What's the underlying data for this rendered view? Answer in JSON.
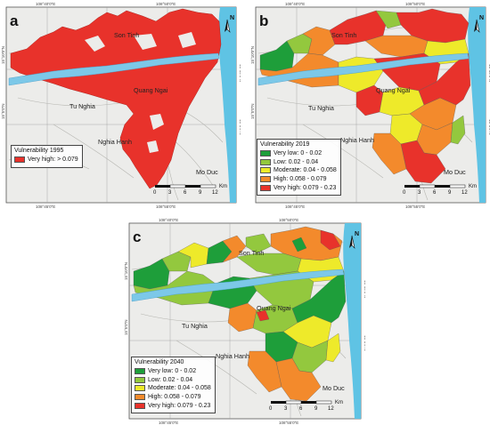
{
  "colors": {
    "very_low": "#1e9e3a",
    "low": "#93c83e",
    "moderate": "#eeea2a",
    "high": "#f38a2c",
    "very_high": "#e8322b",
    "sea": "#5fc3e4",
    "river": "#7cc8e8",
    "land": "#ececea"
  },
  "axis_labels": {
    "lon": [
      "108°40'0\"E",
      "108°45'0\"E",
      "108°50'0\"E",
      "108°55'0\"E"
    ],
    "lat": [
      "15°10'0\"N",
      "15°5'0\"N"
    ]
  },
  "places": {
    "son_tinh": "Son Tinh",
    "tu_nghia": "Tu Nghia",
    "quang_ngai": "Quang Ngai",
    "nghia_hanh": "Nghia Hanh",
    "mo_duc": "Mo Duc"
  },
  "north_label": "N",
  "scalebar": {
    "ticks": [
      "0",
      "3",
      "6",
      "9",
      "12"
    ],
    "unit": "Km"
  },
  "panels": {
    "a": {
      "letter": "a",
      "legend_title": "Vulnerability 1995",
      "legend": [
        {
          "label": "Very high: > 0.079",
          "color": "#e8322b"
        }
      ]
    },
    "b": {
      "letter": "b",
      "legend_title": "Vulnerability 2019",
      "legend": [
        {
          "label": "Very low: 0 - 0.02",
          "color": "#1e9e3a"
        },
        {
          "label": "Low: 0.02 - 0.04",
          "color": "#93c83e"
        },
        {
          "label": "Moderate: 0.04 - 0.058",
          "color": "#eeea2a"
        },
        {
          "label": "High: 0.058 - 0.079",
          "color": "#f38a2c"
        },
        {
          "label": "Very high: 0.079 - 0.23",
          "color": "#e8322b"
        }
      ]
    },
    "c": {
      "letter": "c",
      "legend_title": "Vulnerability 2040",
      "legend": [
        {
          "label": "Very low: 0 - 0.02",
          "color": "#1e9e3a"
        },
        {
          "label": "Low: 0.02 - 0.04",
          "color": "#93c83e"
        },
        {
          "label": "Moderate: 0.04 - 0.058",
          "color": "#eeea2a"
        },
        {
          "label": "High: 0.058 - 0.079",
          "color": "#f38a2c"
        },
        {
          "label": "Very high: 0.079 - 0.23",
          "color": "#e8322b"
        }
      ]
    }
  }
}
